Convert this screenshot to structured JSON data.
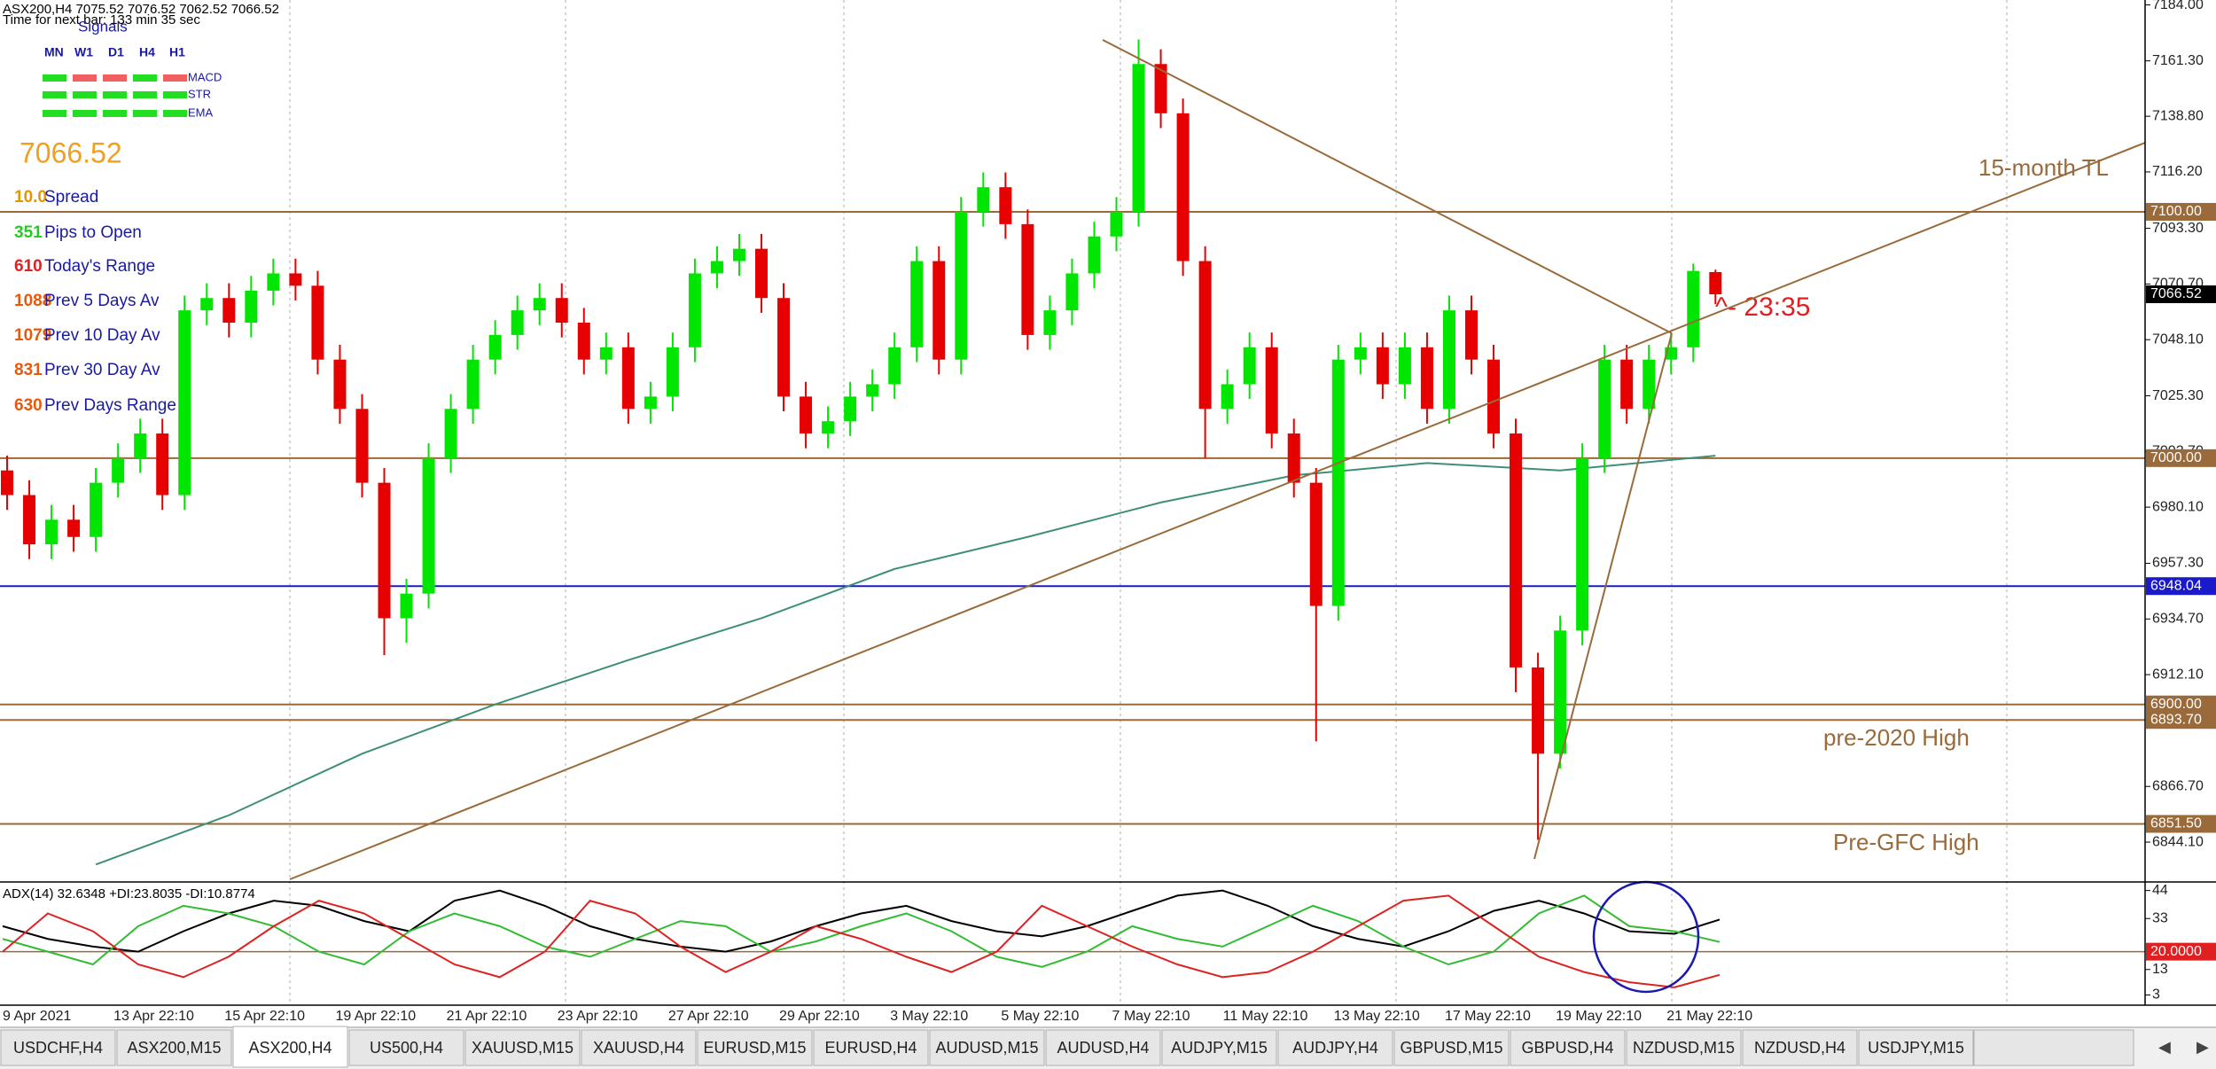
{
  "header": {
    "symbol_line": "ASX200,H4  7075.52 7076.52 7062.52 7066.52",
    "timer": "Time for next bar: 133 min 35 sec"
  },
  "signals": {
    "title": "Signals",
    "timeframes": [
      "MN",
      "W1",
      "D1",
      "H4",
      "H1"
    ],
    "rows": [
      {
        "name": "MACD",
        "colors": [
          "#22dd22",
          "#f06060",
          "#f06060",
          "#22dd22",
          "#f06060"
        ]
      },
      {
        "name": "STR",
        "colors": [
          "#22dd22",
          "#22dd22",
          "#22dd22",
          "#22dd22",
          "#22dd22"
        ]
      },
      {
        "name": "EMA",
        "colors": [
          "#22dd22",
          "#22dd22",
          "#22dd22",
          "#22dd22",
          "#22dd22"
        ]
      }
    ]
  },
  "info_panel": {
    "price": "7066.52",
    "price_color": "#f0a020",
    "rows": [
      {
        "value": "10.0",
        "label": "Spread",
        "color": "#e69500"
      },
      {
        "value": "351",
        "label": "Pips to Open",
        "color": "#22cc22"
      },
      {
        "value": "610",
        "label": "Today's Range",
        "color": "#e02020"
      },
      {
        "value": "1088",
        "label": "Prev 5 Days Av",
        "color": "#e8590c"
      },
      {
        "value": "1079",
        "label": "Prev 10 Day Av",
        "color": "#e8590c"
      },
      {
        "value": "831",
        "label": "Prev 30 Day Av",
        "color": "#e8590c"
      },
      {
        "value": "630",
        "label": "Prev Days Range",
        "color": "#e8590c"
      }
    ]
  },
  "chart_data": [
    {
      "type": "candlestick",
      "up_color": "#00e600",
      "down_color": "#e60000",
      "ohlc": [
        [
          6995,
          7001,
          6979,
          6985
        ],
        [
          6985,
          6991,
          6959,
          6965
        ],
        [
          6965,
          6981,
          6959,
          6975
        ],
        [
          6975,
          6981,
          6962,
          6968
        ],
        [
          6968,
          6996,
          6962,
          6990
        ],
        [
          6990,
          7006,
          6984,
          7000
        ],
        [
          7000,
          7016,
          6994,
          7010
        ],
        [
          7010,
          7016,
          6979,
          6985
        ],
        [
          6985,
          7066,
          6979,
          7060
        ],
        [
          7060,
          7071,
          7054,
          7065
        ],
        [
          7065,
          7071,
          7049,
          7055
        ],
        [
          7055,
          7074,
          7049,
          7068
        ],
        [
          7068,
          7081,
          7062,
          7075
        ],
        [
          7075,
          7081,
          7064,
          7070
        ],
        [
          7070,
          7076,
          7034,
          7040
        ],
        [
          7040,
          7046,
          7014,
          7020
        ],
        [
          7020,
          7026,
          6984,
          6990
        ],
        [
          6990,
          6996,
          6920,
          6935
        ],
        [
          6935,
          6951,
          6925,
          6945
        ],
        [
          6945,
          7006,
          6939,
          7000
        ],
        [
          7000,
          7026,
          6994,
          7020
        ],
        [
          7020,
          7046,
          7014,
          7040
        ],
        [
          7040,
          7056,
          7034,
          7050
        ],
        [
          7050,
          7066,
          7044,
          7060
        ],
        [
          7060,
          7071,
          7054,
          7065
        ],
        [
          7065,
          7071,
          7049,
          7055
        ],
        [
          7055,
          7061,
          7034,
          7040
        ],
        [
          7040,
          7051,
          7034,
          7045
        ],
        [
          7045,
          7051,
          7014,
          7020
        ],
        [
          7020,
          7031,
          7014,
          7025
        ],
        [
          7025,
          7051,
          7019,
          7045
        ],
        [
          7045,
          7081,
          7039,
          7075
        ],
        [
          7075,
          7086,
          7069,
          7080
        ],
        [
          7080,
          7091,
          7074,
          7085
        ],
        [
          7085,
          7091,
          7059,
          7065
        ],
        [
          7065,
          7071,
          7019,
          7025
        ],
        [
          7025,
          7031,
          7004,
          7010
        ],
        [
          7010,
          7021,
          7004,
          7015
        ],
        [
          7015,
          7031,
          7009,
          7025
        ],
        [
          7025,
          7036,
          7019,
          7030
        ],
        [
          7030,
          7051,
          7024,
          7045
        ],
        [
          7045,
          7086,
          7039,
          7080
        ],
        [
          7080,
          7086,
          7034,
          7040
        ],
        [
          7040,
          7106,
          7034,
          7100
        ],
        [
          7100,
          7116,
          7094,
          7110
        ],
        [
          7110,
          7116,
          7089,
          7095
        ],
        [
          7095,
          7101,
          7044,
          7050
        ],
        [
          7050,
          7066,
          7044,
          7060
        ],
        [
          7060,
          7081,
          7054,
          7075
        ],
        [
          7075,
          7096,
          7069,
          7090
        ],
        [
          7090,
          7106,
          7084,
          7100
        ],
        [
          7100,
          7170,
          7094,
          7160
        ],
        [
          7160,
          7166,
          7134,
          7140
        ],
        [
          7140,
          7146,
          7074,
          7080
        ],
        [
          7080,
          7086,
          7000,
          7020
        ],
        [
          7020,
          7036,
          7014,
          7030
        ],
        [
          7030,
          7051,
          7024,
          7045
        ],
        [
          7045,
          7051,
          7004,
          7010
        ],
        [
          7010,
          7016,
          6984,
          6990
        ],
        [
          6990,
          6996,
          6885,
          6940
        ],
        [
          6940,
          7046,
          6934,
          7040
        ],
        [
          7040,
          7051,
          7034,
          7045
        ],
        [
          7045,
          7051,
          7024,
          7030
        ],
        [
          7030,
          7051,
          7024,
          7045
        ],
        [
          7045,
          7051,
          7014,
          7020
        ],
        [
          7020,
          7066,
          7014,
          7060
        ],
        [
          7060,
          7066,
          7034,
          7040
        ],
        [
          7040,
          7046,
          7004,
          7010
        ],
        [
          7010,
          7016,
          6905,
          6915
        ],
        [
          6915,
          6921,
          6845,
          6880
        ],
        [
          6880,
          6936,
          6874,
          6930
        ],
        [
          6930,
          7006,
          6924,
          7000
        ],
        [
          7000,
          7046,
          6994,
          7040
        ],
        [
          7040,
          7046,
          7014,
          7020
        ],
        [
          7020,
          7046,
          7014,
          7040
        ],
        [
          7040,
          7051,
          7034,
          7045
        ],
        [
          7045,
          7079,
          7039,
          7076
        ],
        [
          7075.52,
          7076.52,
          7062.52,
          7066.52
        ]
      ],
      "categories": [
        "9 Apr 2021",
        null,
        null,
        null,
        null,
        "13 Apr 22:10",
        null,
        null,
        null,
        null,
        "15 Apr 22:10",
        null,
        null,
        null,
        null,
        "19 Apr 22:10",
        null,
        null,
        null,
        null,
        "21 Apr 22:10",
        null,
        null,
        null,
        null,
        "23 Apr 22:10",
        null,
        null,
        null,
        null,
        "27 Apr 22:10",
        null,
        null,
        null,
        null,
        "29 Apr 22:10",
        null,
        null,
        null,
        null,
        "3 May 22:10",
        null,
        null,
        null,
        null,
        "5 May 22:10",
        null,
        null,
        null,
        null,
        "7 May 22:10",
        null,
        null,
        null,
        null,
        "11 May 22:10",
        null,
        null,
        null,
        null,
        "13 May 22:10",
        null,
        null,
        null,
        null,
        "17 May 22:10",
        null,
        null,
        null,
        null,
        "19 May 22:10",
        null,
        null,
        null,
        null,
        "21 May 22:10",
        null,
        null
      ],
      "ylim": [
        6829,
        7186
      ],
      "yticks": [
        {
          "value": 7184,
          "label": "7184.00"
        },
        {
          "value": 7161.3,
          "label": "7161.30"
        },
        {
          "value": 7138.8,
          "label": "7138.80"
        },
        {
          "value": 7116.2,
          "label": "7116.20"
        },
        {
          "value": 7093.3,
          "label": "7093.30"
        },
        {
          "value": 7070.7,
          "label": "7070.70"
        },
        {
          "value": 7048.1,
          "label": "7048.10"
        },
        {
          "value": 7025.3,
          "label": "7025.30"
        },
        {
          "value": 7002.7,
          "label": "7002.70"
        },
        {
          "value": 6980.1,
          "label": "6980.10"
        },
        {
          "value": 6957.3,
          "label": "6957.30"
        },
        {
          "value": 6934.7,
          "label": "6934.70"
        },
        {
          "value": 6912.1,
          "label": "6912.10"
        },
        {
          "value": 6866.7,
          "label": "6866.70"
        },
        {
          "value": 6844.1,
          "label": "6844.10"
        }
      ],
      "levels": [
        {
          "value": 7100,
          "label": "7100.00",
          "color": "#9a6a3a"
        },
        {
          "value": 7000,
          "label": "7000.00",
          "color": "#9a6a3a"
        },
        {
          "value": 6948.04,
          "label": "6948.04",
          "color": "#1a1acc"
        },
        {
          "value": 6900,
          "label": "6900.00",
          "color": "#9a6a3a"
        },
        {
          "value": 6893.7,
          "label": "6893.70",
          "color": "#9a6a3a"
        },
        {
          "value": 6851.5,
          "label": "6851.50",
          "color": "#9a6a3a"
        }
      ],
      "price_label": {
        "value": 7066.52,
        "label": "7066.52",
        "color": "#000000"
      },
      "moving_average": {
        "color": "#3f8f78",
        "x": [
          4,
          10,
          16,
          22,
          28,
          34,
          40,
          46,
          52,
          58,
          64,
          70,
          77
        ],
        "values": [
          6835,
          6855,
          6880,
          6900,
          6918,
          6935,
          6955,
          6968,
          6982,
          6993,
          6998,
          6995,
          7001
        ]
      },
      "annotations": [
        {
          "text": "15-month TL",
          "color": "#9a6a3a"
        },
        {
          "text": "pre-2020 High",
          "color": "#9a6a3a"
        },
        {
          "text": "Pre-GFC High",
          "color": "#9a6a3a"
        },
        {
          "text": "^- 23:35",
          "color": "#e02020"
        }
      ]
    },
    {
      "type": "line",
      "title": "ADX(14) 32.6348 +DI:23.8035 -DI:10.8774",
      "series": [
        {
          "color": "#000000",
          "values": [
            30,
            25,
            22,
            20,
            28,
            35,
            40,
            38,
            32,
            28,
            40,
            44,
            38,
            30,
            25,
            22,
            20,
            24,
            30,
            35,
            38,
            32,
            28,
            26,
            30,
            36,
            42,
            44,
            38,
            30,
            25,
            22,
            28,
            36,
            40,
            35,
            28,
            27,
            32.6
          ]
        },
        {
          "color": "#33bb33",
          "values": [
            25,
            20,
            15,
            30,
            38,
            35,
            30,
            20,
            15,
            28,
            35,
            30,
            22,
            18,
            25,
            32,
            30,
            20,
            24,
            30,
            35,
            28,
            18,
            14,
            20,
            30,
            25,
            22,
            30,
            38,
            32,
            22,
            15,
            20,
            35,
            42,
            30,
            28,
            23.8
          ]
        },
        {
          "color": "#dd2222",
          "values": [
            20,
            35,
            28,
            15,
            10,
            18,
            30,
            40,
            35,
            25,
            15,
            10,
            20,
            40,
            35,
            22,
            12,
            20,
            30,
            25,
            18,
            12,
            20,
            38,
            30,
            22,
            15,
            10,
            12,
            20,
            30,
            40,
            42,
            30,
            18,
            12,
            8,
            6,
            10.9
          ]
        }
      ],
      "ylim": [
        -1,
        47
      ],
      "yticks": [
        44,
        33,
        13,
        3
      ],
      "level": {
        "value": 20,
        "label": "20.0000",
        "color": "#e02020"
      }
    }
  ],
  "tabs": {
    "items": [
      "USDCHF,H4",
      "ASX200,M15",
      "ASX200,H4",
      "US500,H4",
      "XAUUSD,M15",
      "XAUUSD,H4",
      "EURUSD,M15",
      "EURUSD,H4",
      "AUDUSD,M15",
      "AUDUSD,H4",
      "AUDJPY,M15",
      "AUDJPY,H4",
      "GBPUSD,M15",
      "GBPUSD,H4",
      "NZDUSD,M15",
      "NZDUSD,H4",
      "USDJPY,M15"
    ],
    "active": 2
  }
}
